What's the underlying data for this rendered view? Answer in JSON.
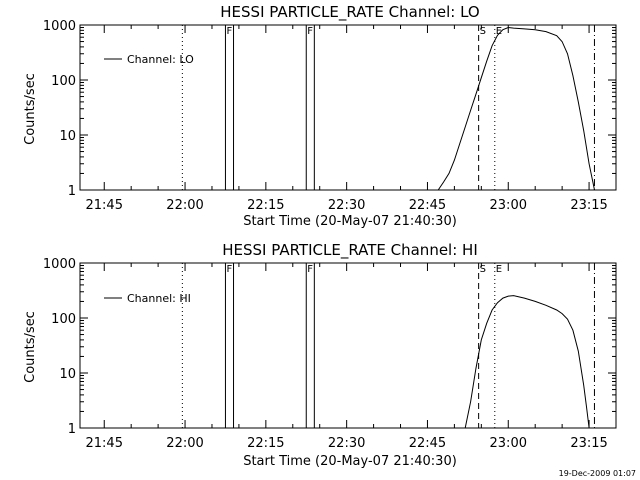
{
  "footer": {
    "timestamp": "19-Dec-2009 01:07"
  },
  "chart_data": [
    {
      "type": "line",
      "title": "HESSI PARTICLE_RATE Channel: LO",
      "xlabel": "Start Time (20-May-07 21:40:30)",
      "ylabel": "Counts/sec",
      "yscale": "log",
      "ylim": [
        1,
        1000
      ],
      "yticks": [
        {
          "v": 1,
          "label": "1"
        },
        {
          "v": 10,
          "label": "10"
        },
        {
          "v": 100,
          "label": "100"
        },
        {
          "v": 1000,
          "label": "1000"
        }
      ],
      "xlim": [
        "21:40:30",
        "23:20:00"
      ],
      "xticks": [
        "21:45",
        "22:00",
        "22:15",
        "22:30",
        "22:45",
        "23:00",
        "23:15"
      ],
      "legend": {
        "label": "Channel: LO",
        "placement": "top-left"
      },
      "markers": [
        {
          "time": "21:59:30",
          "style": "dotted",
          "label": ""
        },
        {
          "time": "22:07:30",
          "style": "solid",
          "label": "F"
        },
        {
          "time": "22:09:00",
          "style": "solid",
          "label": ""
        },
        {
          "time": "22:22:30",
          "style": "solid",
          "label": "F"
        },
        {
          "time": "22:24:00",
          "style": "solid",
          "label": ""
        },
        {
          "time": "22:54:30",
          "style": "dashed",
          "label": "S"
        },
        {
          "time": "22:57:30",
          "style": "dotted",
          "label": "E"
        },
        {
          "time": "23:16:00",
          "style": "dashdot",
          "label": ""
        }
      ],
      "series": [
        {
          "x": [
            "22:47:00",
            "22:48:00",
            "22:49:00",
            "22:50:00",
            "22:51:00",
            "22:52:00",
            "22:53:00",
            "22:54:00",
            "22:55:00",
            "22:56:00",
            "22:57:00",
            "22:58:00",
            "22:59:00",
            "23:00:00",
            "23:01:00",
            "23:03:00",
            "23:05:00",
            "23:07:00",
            "23:09:00",
            "23:10:00",
            "23:11:00",
            "23:12:00",
            "23:13:00",
            "23:14:00",
            "23:15:00",
            "23:16:00"
          ],
          "y": [
            1,
            1.4,
            2,
            3.5,
            7,
            14,
            28,
            55,
            110,
            220,
            420,
            650,
            820,
            900,
            880,
            850,
            820,
            760,
            640,
            500,
            300,
            120,
            40,
            12,
            3,
            1
          ]
        }
      ]
    },
    {
      "type": "line",
      "title": "HESSI PARTICLE_RATE Channel: HI",
      "xlabel": "Start Time (20-May-07 21:40:30)",
      "ylabel": "Counts/sec",
      "yscale": "log",
      "ylim": [
        1,
        1000
      ],
      "yticks": [
        {
          "v": 1,
          "label": "1"
        },
        {
          "v": 10,
          "label": "10"
        },
        {
          "v": 100,
          "label": "100"
        },
        {
          "v": 1000,
          "label": "1000"
        }
      ],
      "xlim": [
        "21:40:30",
        "23:20:00"
      ],
      "xticks": [
        "21:45",
        "22:00",
        "22:15",
        "22:30",
        "22:45",
        "23:00",
        "23:15"
      ],
      "legend": {
        "label": "Channel: HI",
        "placement": "top-left"
      },
      "markers": [
        {
          "time": "21:59:30",
          "style": "dotted",
          "label": ""
        },
        {
          "time": "22:07:30",
          "style": "solid",
          "label": "F"
        },
        {
          "time": "22:09:00",
          "style": "solid",
          "label": ""
        },
        {
          "time": "22:22:30",
          "style": "solid",
          "label": "F"
        },
        {
          "time": "22:24:00",
          "style": "solid",
          "label": ""
        },
        {
          "time": "22:54:30",
          "style": "dashed",
          "label": "S"
        },
        {
          "time": "22:57:30",
          "style": "dotted",
          "label": "E"
        },
        {
          "time": "23:16:00",
          "style": "dashdot",
          "label": ""
        }
      ],
      "series": [
        {
          "x": [
            "22:52:00",
            "22:53:00",
            "22:54:00",
            "22:55:00",
            "22:56:00",
            "22:57:00",
            "22:58:00",
            "22:59:00",
            "23:00:00",
            "23:01:00",
            "23:03:00",
            "23:05:00",
            "23:07:00",
            "23:09:00",
            "23:10:00",
            "23:11:00",
            "23:12:00",
            "23:13:00",
            "23:14:00",
            "23:14:30",
            "23:15:00"
          ],
          "y": [
            1,
            3,
            12,
            40,
            80,
            140,
            190,
            230,
            250,
            255,
            230,
            200,
            170,
            140,
            120,
            95,
            60,
            25,
            6,
            2.5,
            1
          ]
        }
      ]
    }
  ]
}
